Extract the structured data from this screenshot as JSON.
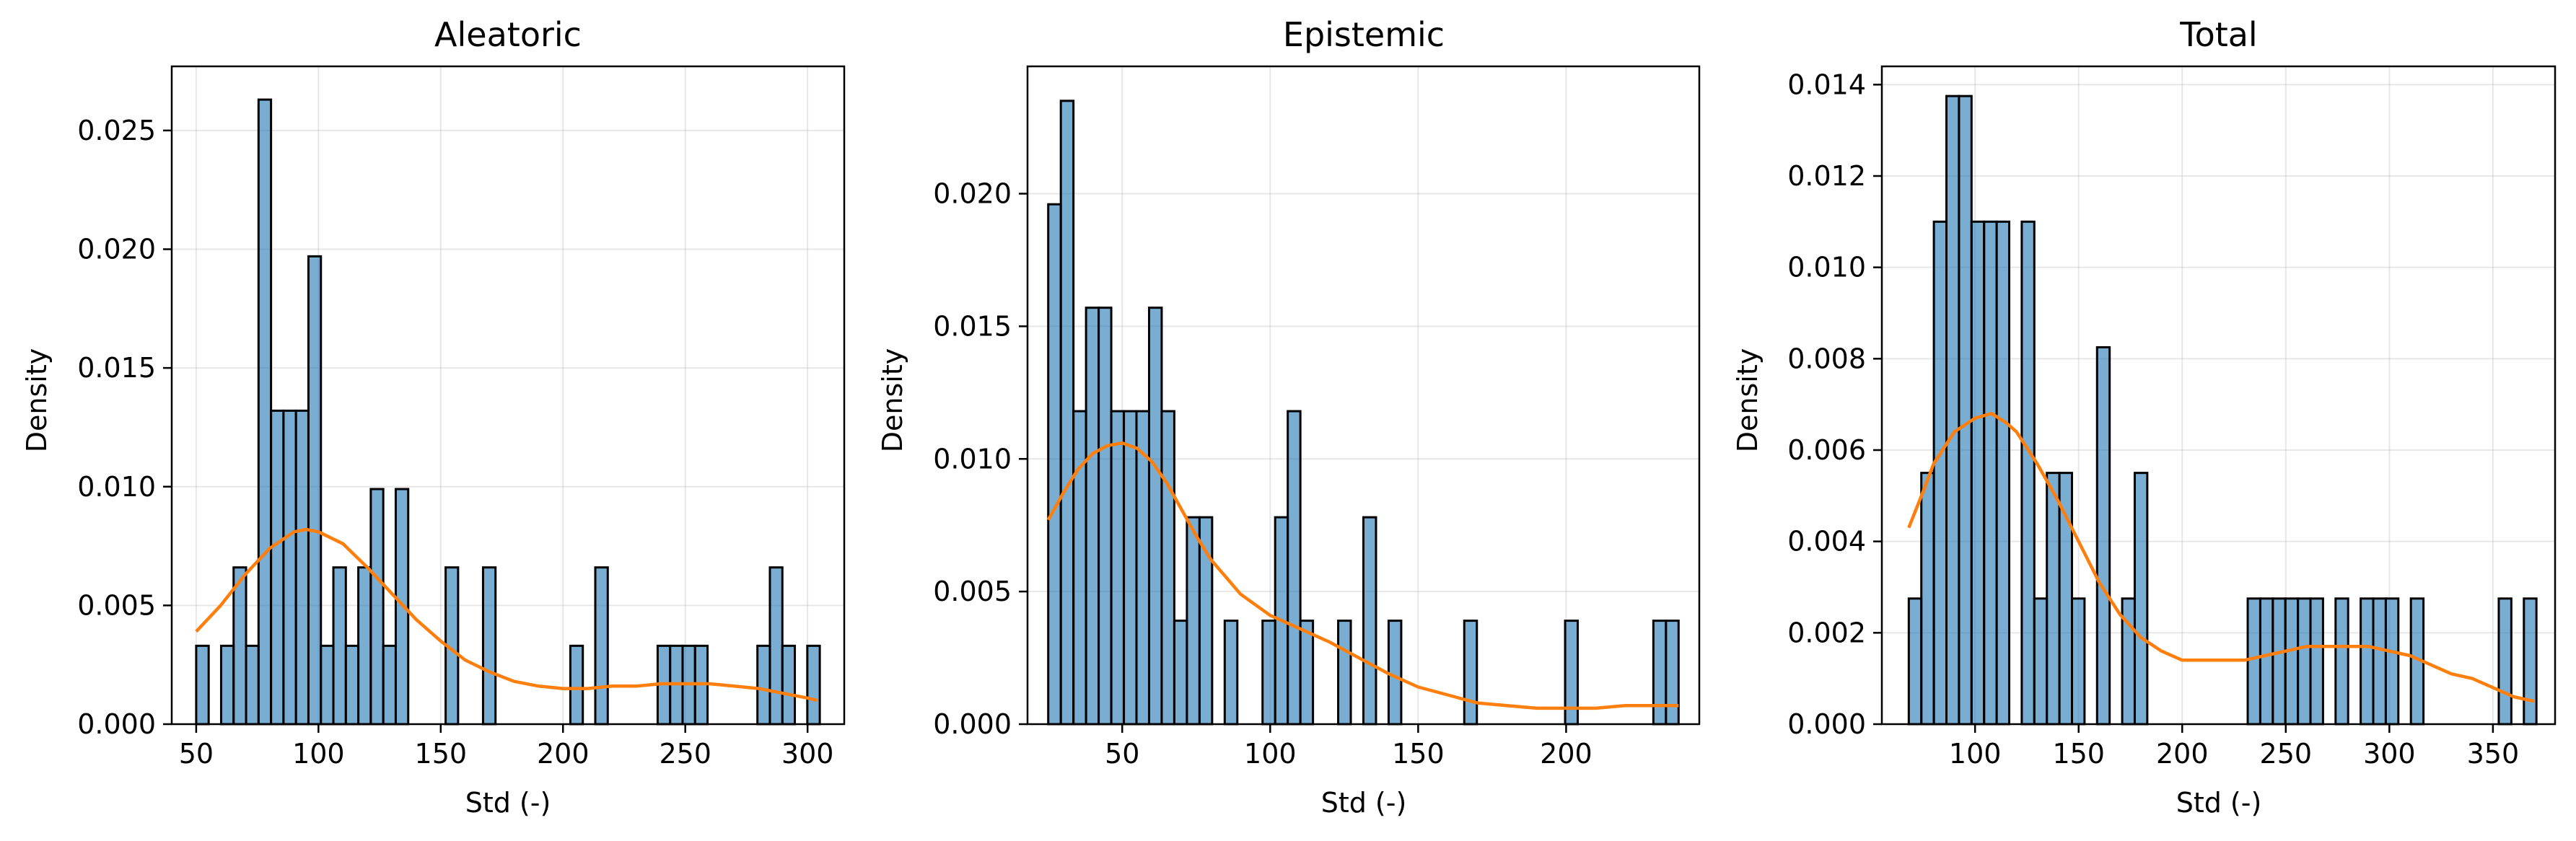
{
  "chart_data": [
    {
      "type": "histogram",
      "title": "Aleatoric",
      "xlabel": "Std (-)",
      "ylabel": "Density",
      "xlim": [
        40,
        315
      ],
      "ylim": [
        0,
        0.0277
      ],
      "xticks": [
        50,
        100,
        150,
        200,
        250,
        300
      ],
      "yticks": [
        0.0,
        0.005,
        0.01,
        0.015,
        0.02,
        0.025
      ],
      "ytick_labels": [
        "0.000",
        "0.005",
        "0.010",
        "0.015",
        "0.020",
        "0.025"
      ],
      "grid": true,
      "bin_start": 50,
      "bin_width": 5.1,
      "densities": [
        0.0033,
        0,
        0.0033,
        0.0066,
        0.0033,
        0.0263,
        0.0132,
        0.0132,
        0.0132,
        0.0197,
        0.0033,
        0.0066,
        0.0033,
        0.0066,
        0.0099,
        0.0033,
        0.0099,
        0,
        0,
        0,
        0.0066,
        0,
        0,
        0.0066,
        0,
        0,
        0,
        0,
        0,
        0,
        0.0033,
        0,
        0.0066,
        0,
        0,
        0,
        0,
        0.0033,
        0.0033,
        0.0033,
        0.0033,
        0,
        0,
        0,
        0,
        0.0033,
        0.0066,
        0.0033,
        0,
        0.0033
      ],
      "kde": {
        "x": [
          50,
          60,
          70,
          80,
          90,
          95,
          100,
          110,
          120,
          130,
          140,
          150,
          160,
          170,
          180,
          190,
          200,
          210,
          220,
          230,
          240,
          250,
          260,
          270,
          280,
          290,
          300,
          304
        ],
        "y": [
          0.0039,
          0.005,
          0.0063,
          0.0074,
          0.0081,
          0.0082,
          0.0081,
          0.0076,
          0.0066,
          0.0055,
          0.0044,
          0.0035,
          0.0027,
          0.0022,
          0.0018,
          0.0016,
          0.0015,
          0.0015,
          0.0016,
          0.0016,
          0.0017,
          0.0017,
          0.0017,
          0.0016,
          0.0015,
          0.0013,
          0.0011,
          0.001
        ]
      }
    },
    {
      "type": "histogram",
      "title": "Epistemic",
      "xlabel": "Std (-)",
      "ylabel": "Density",
      "xlim": [
        18,
        245
      ],
      "ylim": [
        0,
        0.0248
      ],
      "xticks": [
        50,
        100,
        150,
        200
      ],
      "yticks": [
        0.0,
        0.005,
        0.01,
        0.015,
        0.02
      ],
      "ytick_labels": [
        "0.000",
        "0.005",
        "0.010",
        "0.015",
        "0.020"
      ],
      "grid": true,
      "bin_start": 25,
      "bin_width": 4.26,
      "densities": [
        0.0196,
        0.0235,
        0.0118,
        0.0157,
        0.0157,
        0.0118,
        0.0118,
        0.0118,
        0.0157,
        0.0118,
        0.0039,
        0.0078,
        0.0078,
        0,
        0.0039,
        0,
        0,
        0.0039,
        0.0078,
        0.0118,
        0.0039,
        0,
        0,
        0.0039,
        0,
        0.0078,
        0,
        0.0039,
        0,
        0,
        0,
        0,
        0,
        0.0039,
        0,
        0,
        0,
        0,
        0,
        0,
        0,
        0.0039,
        0,
        0,
        0,
        0,
        0,
        0,
        0.0039,
        0.0039
      ],
      "kde": {
        "x": [
          25,
          30,
          35,
          40,
          45,
          50,
          55,
          60,
          65,
          70,
          75,
          80,
          90,
          100,
          110,
          120,
          130,
          140,
          150,
          160,
          170,
          180,
          190,
          200,
          210,
          220,
          230,
          238
        ],
        "y": [
          0.0077,
          0.0087,
          0.0096,
          0.0102,
          0.0105,
          0.0106,
          0.0104,
          0.0099,
          0.0091,
          0.0081,
          0.0071,
          0.0062,
          0.0049,
          0.0041,
          0.0036,
          0.0031,
          0.0025,
          0.0019,
          0.0014,
          0.0011,
          0.0008,
          0.0007,
          0.0006,
          0.0006,
          0.0006,
          0.0007,
          0.0007,
          0.0007
        ]
      }
    },
    {
      "type": "histogram",
      "title": "Total",
      "xlabel": "Std (-)",
      "ylabel": "Density",
      "xlim": [
        55,
        380
      ],
      "ylim": [
        0,
        0.0144
      ],
      "xticks": [
        100,
        150,
        200,
        250,
        300,
        350
      ],
      "yticks": [
        0.0,
        0.002,
        0.004,
        0.006,
        0.008,
        0.01,
        0.012,
        0.014
      ],
      "ytick_labels": [
        "0.000",
        "0.002",
        "0.004",
        "0.006",
        "0.008",
        "0.010",
        "0.012",
        "0.014"
      ],
      "grid": true,
      "bin_start": 68,
      "bin_width": 6.06,
      "densities": [
        0.00275,
        0.0055,
        0.011,
        0.01375,
        0.01375,
        0.011,
        0.011,
        0.011,
        0,
        0.011,
        0.00275,
        0.0055,
        0.0055,
        0.00275,
        0,
        0.00825,
        0,
        0.00275,
        0.0055,
        0,
        0,
        0,
        0,
        0,
        0,
        0,
        0,
        0.00275,
        0.00275,
        0.00275,
        0.00275,
        0.00275,
        0.00275,
        0,
        0.00275,
        0,
        0.00275,
        0.00275,
        0.00275,
        0,
        0.00275,
        0,
        0,
        0,
        0,
        0,
        0,
        0.00275,
        0,
        0.00275
      ],
      "kde": {
        "x": [
          68,
          75,
          80,
          90,
          100,
          108,
          115,
          120,
          130,
          140,
          150,
          160,
          170,
          180,
          190,
          200,
          210,
          220,
          230,
          240,
          250,
          260,
          270,
          280,
          290,
          300,
          310,
          320,
          330,
          340,
          350,
          360,
          370
        ],
        "y": [
          0.0043,
          0.0051,
          0.0057,
          0.0064,
          0.0067,
          0.0068,
          0.0066,
          0.0064,
          0.0057,
          0.0049,
          0.004,
          0.0031,
          0.0024,
          0.0019,
          0.0016,
          0.0014,
          0.0014,
          0.0014,
          0.0014,
          0.0015,
          0.0016,
          0.0017,
          0.0017,
          0.0017,
          0.0017,
          0.0016,
          0.0015,
          0.0013,
          0.0011,
          0.001,
          0.0008,
          0.0006,
          0.0005
        ]
      }
    }
  ],
  "colors": {
    "bar_fill": "#1f77b4",
    "bar_edge": "#000000",
    "kde_line": "#ff7f0e",
    "grid": "#b0b0b0"
  }
}
